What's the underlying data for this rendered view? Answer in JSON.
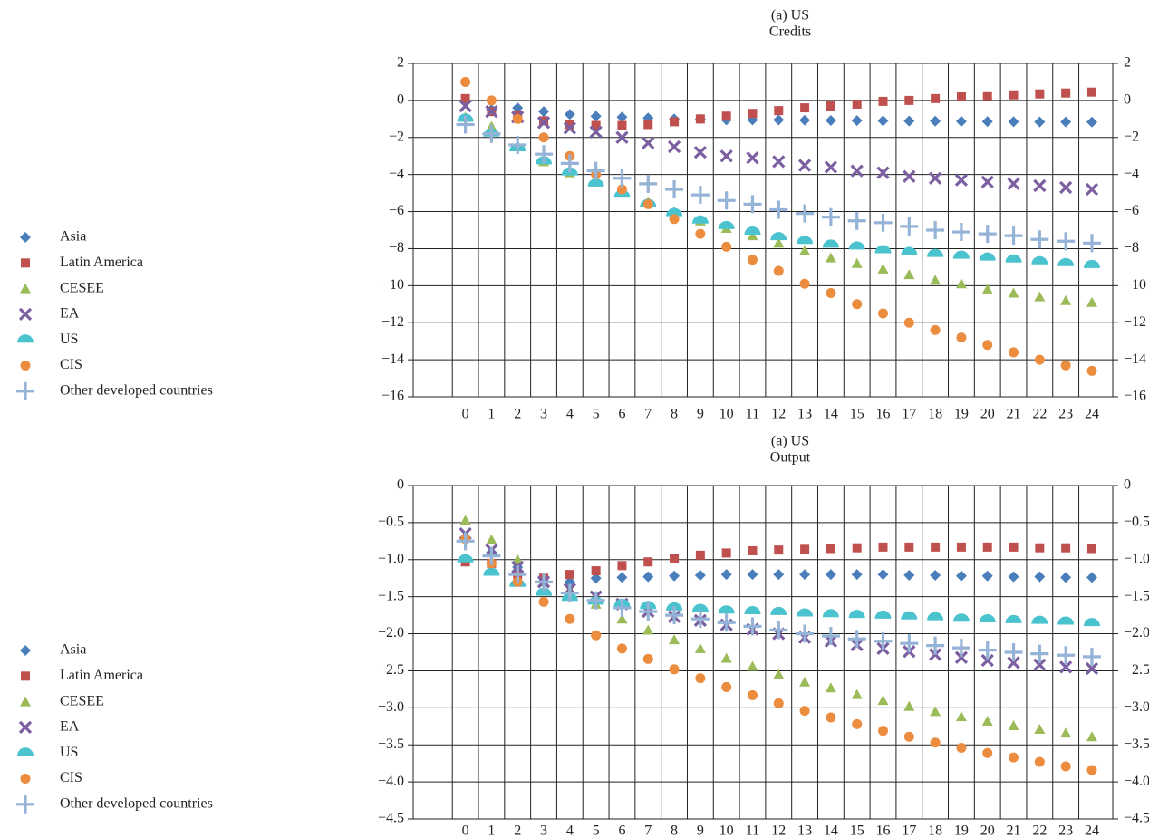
{
  "chart_data": [
    {
      "type": "scatter",
      "title": "(a) US",
      "subtitle": "Credits",
      "x": [
        0,
        1,
        2,
        3,
        4,
        5,
        6,
        7,
        8,
        9,
        10,
        11,
        12,
        13,
        14,
        15,
        16,
        17,
        18,
        19,
        20,
        21,
        22,
        23,
        24
      ],
      "xlim": [
        -2,
        24.8
      ],
      "xticks": [
        0,
        1,
        2,
        3,
        4,
        5,
        6,
        7,
        8,
        9,
        10,
        11,
        12,
        13,
        14,
        15,
        16,
        17,
        18,
        19,
        20,
        21,
        22,
        23,
        24
      ],
      "ylim": [
        -16,
        2
      ],
      "yticks": [
        {
          "value": -16,
          "label": "−16"
        },
        {
          "value": -14,
          "label": "−14"
        },
        {
          "value": -12,
          "label": "−12"
        },
        {
          "value": -10,
          "label": "−10"
        },
        {
          "value": -8,
          "label": "−8"
        },
        {
          "value": -6,
          "label": "−6"
        },
        {
          "value": -4,
          "label": "−4"
        },
        {
          "value": -2,
          "label": "−2"
        },
        0,
        2
      ],
      "grid": true,
      "legend": "left",
      "series": [
        {
          "name": "Asia",
          "color": "#4a7ebb",
          "marker": "diamond",
          "values": [
            0,
            -0.5,
            -0.4,
            -0.6,
            -0.75,
            -0.85,
            -0.9,
            -0.95,
            -1.0,
            -1.0,
            -1.05,
            -1.05,
            -1.05,
            -1.07,
            -1.08,
            -1.09,
            -1.1,
            -1.11,
            -1.12,
            -1.13,
            -1.14,
            -1.15,
            -1.16,
            -1.16,
            -1.17
          ]
        },
        {
          "name": "Latin America",
          "color": "#c0504d",
          "marker": "square",
          "values": [
            0.1,
            -0.6,
            -0.8,
            -1.1,
            -1.3,
            -1.35,
            -1.35,
            -1.3,
            -1.15,
            -1.0,
            -0.85,
            -0.7,
            -0.55,
            -0.4,
            -0.3,
            -0.2,
            -0.05,
            0.0,
            0.1,
            0.2,
            0.25,
            0.3,
            0.35,
            0.4,
            0.45
          ]
        },
        {
          "name": "CESEE",
          "color": "#9bbb59",
          "marker": "triangle",
          "values": [
            -0.9,
            -1.4,
            -2.5,
            -3.3,
            -3.9,
            -4.4,
            -5.0,
            -5.5,
            -6.0,
            -6.5,
            -6.9,
            -7.3,
            -7.7,
            -8.1,
            -8.5,
            -8.8,
            -9.1,
            -9.4,
            -9.7,
            -9.9,
            -10.2,
            -10.4,
            -10.6,
            -10.8,
            -10.9
          ]
        },
        {
          "name": "EA",
          "color": "#7b5fa0",
          "marker": "x",
          "values": [
            -0.3,
            -0.6,
            -0.9,
            -1.2,
            -1.5,
            -1.7,
            -2.0,
            -2.3,
            -2.5,
            -2.8,
            -3.0,
            -3.1,
            -3.3,
            -3.5,
            -3.6,
            -3.8,
            -3.9,
            -4.1,
            -4.2,
            -4.3,
            -4.4,
            -4.5,
            -4.6,
            -4.7,
            -4.8
          ]
        },
        {
          "name": "US",
          "color": "#4bc3cf",
          "marker": "halfcircle",
          "values": [
            -1.0,
            -1.8,
            -2.6,
            -3.3,
            -3.9,
            -4.5,
            -5.1,
            -5.6,
            -6.1,
            -6.5,
            -6.8,
            -7.1,
            -7.4,
            -7.6,
            -7.8,
            -7.9,
            -8.1,
            -8.2,
            -8.3,
            -8.4,
            -8.5,
            -8.6,
            -8.7,
            -8.8,
            -8.9
          ]
        },
        {
          "name": "CIS",
          "color": "#ec8c3e",
          "marker": "circle",
          "values": [
            1.0,
            0,
            -1.0,
            -2.0,
            -3.0,
            -4.0,
            -4.8,
            -5.6,
            -6.4,
            -7.2,
            -7.9,
            -8.6,
            -9.2,
            -9.9,
            -10.4,
            -11.0,
            -11.5,
            -12.0,
            -12.4,
            -12.8,
            -13.2,
            -13.6,
            -14.0,
            -14.3,
            -14.6
          ]
        },
        {
          "name": "Other developed countries",
          "color": "#95b3d7",
          "marker": "plus",
          "values": [
            -1.3,
            -1.8,
            -2.4,
            -2.9,
            -3.4,
            -3.8,
            -4.2,
            -4.5,
            -4.8,
            -5.1,
            -5.4,
            -5.6,
            -5.9,
            -6.1,
            -6.3,
            -6.5,
            -6.6,
            -6.8,
            -7.0,
            -7.1,
            -7.2,
            -7.3,
            -7.5,
            -7.6,
            -7.7
          ]
        }
      ]
    },
    {
      "type": "scatter",
      "title": "(a) US",
      "subtitle": "Output",
      "x": [
        0,
        1,
        2,
        3,
        4,
        5,
        6,
        7,
        8,
        9,
        10,
        11,
        12,
        13,
        14,
        15,
        16,
        17,
        18,
        19,
        20,
        21,
        22,
        23,
        24
      ],
      "xlim": [
        -2,
        24.8
      ],
      "xticks": [
        0,
        1,
        2,
        3,
        4,
        5,
        6,
        7,
        8,
        9,
        10,
        11,
        12,
        13,
        14,
        15,
        16,
        17,
        18,
        19,
        20,
        21,
        22,
        23,
        24
      ],
      "ylim": [
        -4.5,
        0
      ],
      "yticks": [
        {
          "value": -4.5,
          "label": "−4.5"
        },
        {
          "value": -4,
          "label": "−4.0"
        },
        {
          "value": -3.5,
          "label": "−3.5"
        },
        {
          "value": -3,
          "label": "−3.0"
        },
        {
          "value": -2.5,
          "label": "−2.5"
        },
        {
          "value": -2,
          "label": "−2.0"
        },
        {
          "value": -1.5,
          "label": "−1.5"
        },
        {
          "value": -1,
          "label": "−1.0"
        },
        {
          "value": -0.5,
          "label": "−0.5"
        },
        0
      ],
      "grid": true,
      "legend": "left",
      "series": [
        {
          "name": "Asia",
          "color": "#4a7ebb",
          "marker": "diamond",
          "values": [
            -1.0,
            -0.9,
            -1.1,
            -1.25,
            -1.3,
            -1.25,
            -1.24,
            -1.23,
            -1.22,
            -1.21,
            -1.2,
            -1.2,
            -1.2,
            -1.2,
            -1.2,
            -1.2,
            -1.2,
            -1.21,
            -1.21,
            -1.22,
            -1.22,
            -1.23,
            -1.23,
            -1.24,
            -1.24
          ]
        },
        {
          "name": "Latin America",
          "color": "#c0504d",
          "marker": "square",
          "values": [
            -1.03,
            -1.05,
            -1.2,
            -1.25,
            -1.2,
            -1.15,
            -1.08,
            -1.03,
            -0.99,
            -0.94,
            -0.91,
            -0.88,
            -0.87,
            -0.86,
            -0.85,
            -0.84,
            -0.83,
            -0.83,
            -0.83,
            -0.83,
            -0.83,
            -0.83,
            -0.84,
            -0.84,
            -0.85
          ]
        },
        {
          "name": "CESEE",
          "color": "#9bbb59",
          "marker": "triangle",
          "values": [
            -0.47,
            -0.73,
            -1.0,
            -1.3,
            -1.4,
            -1.6,
            -1.8,
            -1.95,
            -2.08,
            -2.2,
            -2.33,
            -2.44,
            -2.55,
            -2.65,
            -2.73,
            -2.82,
            -2.9,
            -2.98,
            -3.05,
            -3.12,
            -3.18,
            -3.24,
            -3.29,
            -3.34,
            -3.39
          ]
        },
        {
          "name": "EA",
          "color": "#7b5fa0",
          "marker": "x",
          "values": [
            -0.65,
            -0.87,
            -1.1,
            -1.3,
            -1.4,
            -1.5,
            -1.6,
            -1.7,
            -1.77,
            -1.82,
            -1.88,
            -1.94,
            -2.0,
            -2.05,
            -2.1,
            -2.15,
            -2.2,
            -2.24,
            -2.28,
            -2.32,
            -2.36,
            -2.39,
            -2.42,
            -2.45,
            -2.47
          ]
        },
        {
          "name": "US",
          "color": "#4bc3cf",
          "marker": "halfcircle",
          "values": [
            -1.0,
            -1.18,
            -1.33,
            -1.45,
            -1.52,
            -1.57,
            -1.6,
            -1.63,
            -1.65,
            -1.67,
            -1.69,
            -1.7,
            -1.71,
            -1.73,
            -1.74,
            -1.75,
            -1.76,
            -1.77,
            -1.78,
            -1.8,
            -1.81,
            -1.82,
            -1.83,
            -1.84,
            -1.86
          ]
        },
        {
          "name": "CIS",
          "color": "#ec8c3e",
          "marker": "circle",
          "values": [
            -0.72,
            -1.05,
            -1.3,
            -1.57,
            -1.8,
            -2.02,
            -2.2,
            -2.34,
            -2.48,
            -2.6,
            -2.72,
            -2.83,
            -2.94,
            -3.04,
            -3.13,
            -3.22,
            -3.31,
            -3.39,
            -3.47,
            -3.54,
            -3.61,
            -3.67,
            -3.73,
            -3.79,
            -3.84
          ]
        },
        {
          "name": "Other developed countries",
          "color": "#95b3d7",
          "marker": "plus",
          "values": [
            -0.75,
            -0.95,
            -1.2,
            -1.3,
            -1.45,
            -1.55,
            -1.65,
            -1.7,
            -1.75,
            -1.8,
            -1.85,
            -1.9,
            -1.95,
            -2.0,
            -2.03,
            -2.07,
            -2.1,
            -2.13,
            -2.16,
            -2.19,
            -2.22,
            -2.25,
            -2.27,
            -2.29,
            -2.31
          ]
        }
      ]
    }
  ]
}
